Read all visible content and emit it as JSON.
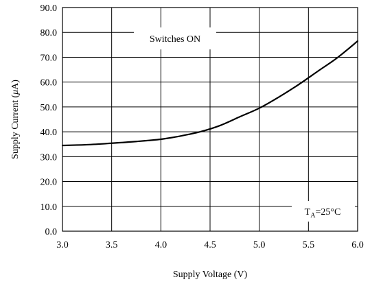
{
  "chart_data": {
    "type": "line",
    "title": "",
    "xlabel": "Supply Voltage (V)",
    "ylabel": "Supply Current (μA)",
    "ylabel_parts": {
      "before": "Supply Current (",
      "mu": "μ",
      "after": "A)"
    },
    "xlim": [
      3.0,
      6.0
    ],
    "ylim": [
      0.0,
      90.0
    ],
    "xticks": [
      "3.0",
      "3.5",
      "4.0",
      "4.5",
      "5.0",
      "5.5",
      "6.0"
    ],
    "yticks": [
      "0.0",
      "10.0",
      "20.0",
      "30.0",
      "40.0",
      "50.0",
      "60.0",
      "70.0",
      "80.0",
      "90.0"
    ],
    "grid": true,
    "annotations": {
      "top": "Switches ON",
      "bottom_right": {
        "main": "T",
        "sub": "A",
        "rest": "=25°C"
      }
    },
    "series": [
      {
        "x": [
          3.0,
          3.25,
          3.5,
          3.75,
          4.0,
          4.2,
          4.4,
          4.6,
          4.8,
          5.0,
          5.2,
          5.4,
          5.6,
          5.8,
          6.0
        ],
        "y": [
          34.5,
          34.8,
          35.4,
          36.1,
          37.0,
          38.3,
          40.0,
          42.5,
          46.0,
          49.5,
          54.0,
          59.0,
          64.5,
          70.0,
          76.5
        ]
      }
    ]
  }
}
